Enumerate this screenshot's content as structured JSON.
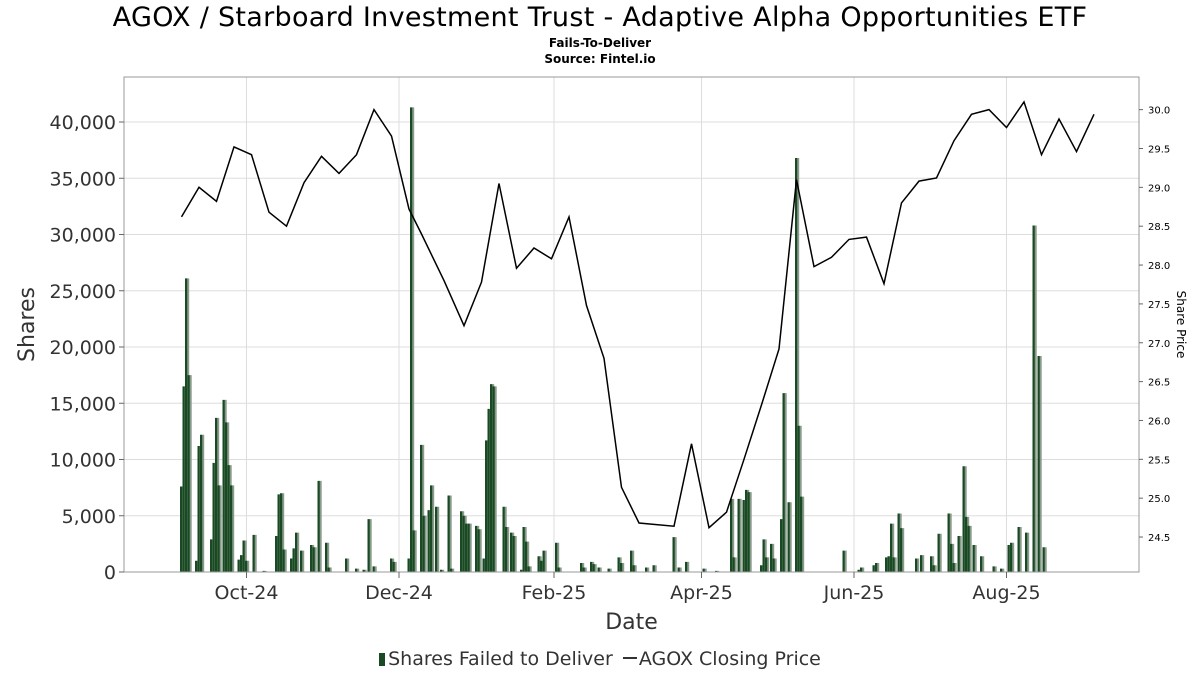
{
  "title": "AGOX / Starboard Investment Trust - Adaptive Alpha Opportunities ETF",
  "subtitle": "Fails-To-Deliver",
  "source": "Source: Fintel.io",
  "colors": {
    "bar": "#1a4a24",
    "bar_shade": "#8a9a8c",
    "line": "#000000",
    "grid": "#dddddd"
  },
  "chart_data": {
    "type": "bar",
    "xlabel": "Date",
    "ylabel": "Shares",
    "y2label": "Share Price",
    "x_tick_labels": [
      "Oct-24",
      "Dec-24",
      "Feb-25",
      "Apr-25",
      "Jun-25",
      "Aug-25"
    ],
    "x_tick_dates": [
      "2024-10-01",
      "2024-12-01",
      "2025-02-01",
      "2025-04-01",
      "2025-06-01",
      "2025-08-01"
    ],
    "xlim": [
      "2024-08-13",
      "2025-09-23"
    ],
    "ylim": [
      0,
      44000
    ],
    "y_ticks": [
      "0",
      "5,000",
      "10,000",
      "15,000",
      "20,000",
      "25,000",
      "30,000",
      "35,000",
      "40,000"
    ],
    "y2lim": [
      24.05,
      30.42
    ],
    "y2_ticks": [
      "24.5",
      "25.0",
      "25.5",
      "26.0",
      "26.5",
      "27.0",
      "27.5",
      "28.0",
      "28.5",
      "29.0",
      "29.5",
      "30.0"
    ],
    "grid": true,
    "legend_position": "bottom-center",
    "legend": [
      "Shares Failed to Deliver",
      "AGOX Closing Price"
    ],
    "series": [
      {
        "name": "Shares Failed to Deliver",
        "kind": "bar",
        "points": [
          [
            "2024-09-05",
            7600
          ],
          [
            "2024-09-06",
            16500
          ],
          [
            "2024-09-07",
            26100
          ],
          [
            "2024-09-08",
            17500
          ],
          [
            "2024-09-11",
            1000
          ],
          [
            "2024-09-12",
            11200
          ],
          [
            "2024-09-13",
            12200
          ],
          [
            "2024-09-17",
            2900
          ],
          [
            "2024-09-18",
            9700
          ],
          [
            "2024-09-19",
            13700
          ],
          [
            "2024-09-20",
            7700
          ],
          [
            "2024-09-22",
            15300
          ],
          [
            "2024-09-23",
            13300
          ],
          [
            "2024-09-24",
            9500
          ],
          [
            "2024-09-25",
            7700
          ],
          [
            "2024-09-28",
            1100
          ],
          [
            "2024-09-29",
            1500
          ],
          [
            "2024-09-30",
            2800
          ],
          [
            "2024-10-01",
            1000
          ],
          [
            "2024-10-04",
            3300
          ],
          [
            "2024-10-08",
            100
          ],
          [
            "2024-10-13",
            3200
          ],
          [
            "2024-10-14",
            6900
          ],
          [
            "2024-10-15",
            7000
          ],
          [
            "2024-10-16",
            2000
          ],
          [
            "2024-10-19",
            1200
          ],
          [
            "2024-10-20",
            2100
          ],
          [
            "2024-10-21",
            3500
          ],
          [
            "2024-10-23",
            1900
          ],
          [
            "2024-10-27",
            2400
          ],
          [
            "2024-10-28",
            2200
          ],
          [
            "2024-10-30",
            8100
          ],
          [
            "2024-11-02",
            2600
          ],
          [
            "2024-11-03",
            400
          ],
          [
            "2024-11-10",
            1200
          ],
          [
            "2024-11-14",
            300
          ],
          [
            "2024-11-17",
            200
          ],
          [
            "2024-11-19",
            4700
          ],
          [
            "2024-11-21",
            500
          ],
          [
            "2024-11-28",
            1200
          ],
          [
            "2024-11-29",
            900
          ],
          [
            "2024-12-05",
            1200
          ],
          [
            "2024-12-06",
            41300
          ],
          [
            "2024-12-07",
            3700
          ],
          [
            "2024-12-10",
            11300
          ],
          [
            "2024-12-11",
            5000
          ],
          [
            "2024-12-13",
            5500
          ],
          [
            "2024-12-14",
            7700
          ],
          [
            "2024-12-16",
            5800
          ],
          [
            "2024-12-18",
            200
          ],
          [
            "2024-12-21",
            6800
          ],
          [
            "2024-12-22",
            300
          ],
          [
            "2024-12-26",
            5400
          ],
          [
            "2024-12-27",
            5000
          ],
          [
            "2024-12-28",
            4300
          ],
          [
            "2024-12-29",
            4300
          ],
          [
            "2025-01-01",
            4100
          ],
          [
            "2025-01-02",
            3800
          ],
          [
            "2025-01-04",
            1200
          ],
          [
            "2025-01-05",
            11700
          ],
          [
            "2025-01-06",
            14500
          ],
          [
            "2025-01-07",
            16700
          ],
          [
            "2025-01-08",
            16500
          ],
          [
            "2025-01-12",
            5800
          ],
          [
            "2025-01-13",
            4000
          ],
          [
            "2025-01-15",
            3500
          ],
          [
            "2025-01-16",
            3200
          ],
          [
            "2025-01-19",
            200
          ],
          [
            "2025-01-20",
            4000
          ],
          [
            "2025-01-21",
            2700
          ],
          [
            "2025-01-22",
            500
          ],
          [
            "2025-01-26",
            1400
          ],
          [
            "2025-01-27",
            1000
          ],
          [
            "2025-01-28",
            1900
          ],
          [
            "2025-02-02",
            2600
          ],
          [
            "2025-02-03",
            400
          ],
          [
            "2025-02-12",
            800
          ],
          [
            "2025-02-13",
            400
          ],
          [
            "2025-02-16",
            900
          ],
          [
            "2025-02-17",
            700
          ],
          [
            "2025-02-19",
            400
          ],
          [
            "2025-02-23",
            300
          ],
          [
            "2025-02-27",
            1300
          ],
          [
            "2025-02-28",
            800
          ],
          [
            "2025-03-04",
            1900
          ],
          [
            "2025-03-05",
            600
          ],
          [
            "2025-03-10",
            400
          ],
          [
            "2025-03-13",
            600
          ],
          [
            "2025-03-21",
            3100
          ],
          [
            "2025-03-23",
            400
          ],
          [
            "2025-03-26",
            900
          ],
          [
            "2025-04-02",
            300
          ],
          [
            "2025-04-07",
            100
          ],
          [
            "2025-04-13",
            6500
          ],
          [
            "2025-04-14",
            1300
          ],
          [
            "2025-04-16",
            6500
          ],
          [
            "2025-04-18",
            6400
          ],
          [
            "2025-04-19",
            7300
          ],
          [
            "2025-04-20",
            7100
          ],
          [
            "2025-04-25",
            600
          ],
          [
            "2025-04-26",
            2900
          ],
          [
            "2025-04-27",
            1300
          ],
          [
            "2025-04-29",
            2500
          ],
          [
            "2025-04-30",
            1200
          ],
          [
            "2025-05-03",
            4700
          ],
          [
            "2025-05-04",
            15900
          ],
          [
            "2025-05-06",
            6200
          ],
          [
            "2025-05-09",
            36800
          ],
          [
            "2025-05-10",
            13000
          ],
          [
            "2025-05-11",
            6700
          ],
          [
            "2025-05-28",
            1900
          ],
          [
            "2025-06-03",
            200
          ],
          [
            "2025-06-04",
            400
          ],
          [
            "2025-06-09",
            600
          ],
          [
            "2025-06-10",
            800
          ],
          [
            "2025-06-14",
            1300
          ],
          [
            "2025-06-15",
            1400
          ],
          [
            "2025-06-16",
            4300
          ],
          [
            "2025-06-17",
            1300
          ],
          [
            "2025-06-19",
            5200
          ],
          [
            "2025-06-20",
            3900
          ],
          [
            "2025-06-26",
            1200
          ],
          [
            "2025-06-28",
            1500
          ],
          [
            "2025-07-02",
            1400
          ],
          [
            "2025-07-03",
            600
          ],
          [
            "2025-07-05",
            3400
          ],
          [
            "2025-07-09",
            5200
          ],
          [
            "2025-07-10",
            2500
          ],
          [
            "2025-07-11",
            800
          ],
          [
            "2025-07-13",
            3200
          ],
          [
            "2025-07-15",
            9400
          ],
          [
            "2025-07-16",
            4900
          ],
          [
            "2025-07-17",
            4100
          ],
          [
            "2025-07-19",
            2400
          ],
          [
            "2025-07-22",
            1400
          ],
          [
            "2025-07-27",
            500
          ],
          [
            "2025-07-30",
            300
          ],
          [
            "2025-08-02",
            2400
          ],
          [
            "2025-08-03",
            2600
          ],
          [
            "2025-08-06",
            4000
          ],
          [
            "2025-08-09",
            3500
          ],
          [
            "2025-08-12",
            30800
          ],
          [
            "2025-08-14",
            19200
          ],
          [
            "2025-08-16",
            2200
          ]
        ]
      },
      {
        "name": "AGOX Closing Price",
        "kind": "line",
        "points": [
          [
            "2024-09-05",
            28.62
          ],
          [
            "2024-09-12",
            29.0
          ],
          [
            "2024-09-19",
            28.82
          ],
          [
            "2024-09-26",
            29.52
          ],
          [
            "2024-10-03",
            29.42
          ],
          [
            "2024-10-10",
            28.68
          ],
          [
            "2024-10-17",
            28.5
          ],
          [
            "2024-10-24",
            29.06
          ],
          [
            "2024-10-31",
            29.4
          ],
          [
            "2024-11-07",
            29.18
          ],
          [
            "2024-11-14",
            29.42
          ],
          [
            "2024-11-21",
            30.0
          ],
          [
            "2024-11-28",
            29.66
          ],
          [
            "2024-12-05",
            28.72
          ],
          [
            "2024-12-10",
            28.4
          ],
          [
            "2024-12-19",
            27.8
          ],
          [
            "2024-12-27",
            27.22
          ],
          [
            "2025-01-03",
            27.78
          ],
          [
            "2025-01-10",
            29.05
          ],
          [
            "2025-01-17",
            27.96
          ],
          [
            "2025-01-24",
            28.22
          ],
          [
            "2025-01-31",
            28.08
          ],
          [
            "2025-02-07",
            28.62
          ],
          [
            "2025-02-14",
            27.48
          ],
          [
            "2025-02-21",
            26.8
          ],
          [
            "2025-02-28",
            25.14
          ],
          [
            "2025-03-07",
            24.68
          ],
          [
            "2025-03-21",
            24.64
          ],
          [
            "2025-03-28",
            25.7
          ],
          [
            "2025-04-04",
            24.62
          ],
          [
            "2025-04-11",
            24.82
          ],
          [
            "2025-04-18",
            25.5
          ],
          [
            "2025-04-25",
            26.2
          ],
          [
            "2025-05-02",
            26.92
          ],
          [
            "2025-05-09",
            29.1
          ],
          [
            "2025-05-16",
            27.98
          ],
          [
            "2025-05-23",
            28.1
          ],
          [
            "2025-05-30",
            28.33
          ],
          [
            "2025-06-06",
            28.36
          ],
          [
            "2025-06-13",
            27.76
          ],
          [
            "2025-06-20",
            28.8
          ],
          [
            "2025-06-27",
            29.08
          ],
          [
            "2025-07-04",
            29.12
          ],
          [
            "2025-07-11",
            29.6
          ],
          [
            "2025-07-18",
            29.94
          ],
          [
            "2025-07-25",
            30.0
          ],
          [
            "2025-08-01",
            29.77
          ],
          [
            "2025-08-08",
            30.1
          ],
          [
            "2025-08-15",
            29.42
          ],
          [
            "2025-08-22",
            29.88
          ],
          [
            "2025-08-29",
            29.46
          ],
          [
            "2025-09-05",
            29.94
          ]
        ]
      }
    ]
  }
}
